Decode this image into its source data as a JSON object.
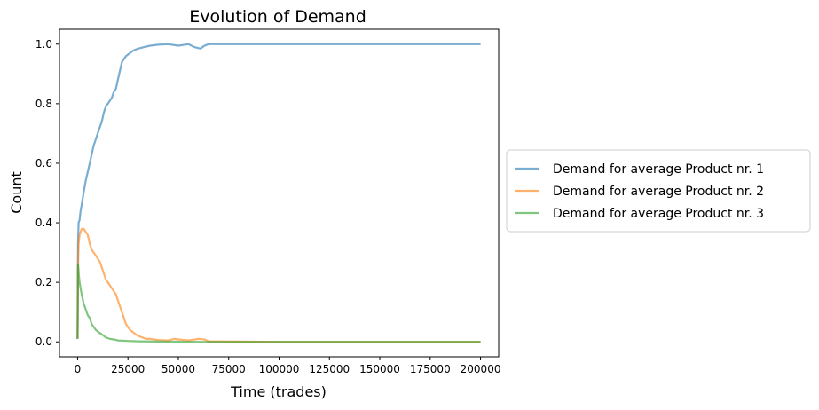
{
  "chart_data": {
    "type": "line",
    "title": "Evolution of Demand",
    "xlabel": "Time (trades)",
    "ylabel": "Count",
    "xlim": [
      -9000,
      209000
    ],
    "ylim": [
      -0.05,
      1.05
    ],
    "xticks": [
      0,
      25000,
      50000,
      75000,
      100000,
      125000,
      150000,
      175000,
      200000
    ],
    "yticks": [
      0.0,
      0.2,
      0.4,
      0.6,
      0.8,
      1.0
    ],
    "xtick_labels": [
      "0",
      "25000",
      "50000",
      "75000",
      "100000",
      "125000",
      "150000",
      "175000",
      "200000"
    ],
    "ytick_labels": [
      "0.0",
      "0.2",
      "0.4",
      "0.6",
      "0.8",
      "1.0"
    ],
    "grid": false,
    "legend_position": "outside-right",
    "series": [
      {
        "name": "Demand for average Product nr. 1",
        "color": "#1f77b4",
        "x": [
          0,
          200,
          500,
          1000,
          1500,
          2000,
          3000,
          4000,
          5000,
          6000,
          7000,
          8000,
          9000,
          10000,
          11000,
          12000,
          13000,
          14000,
          15000,
          16000,
          17000,
          18000,
          19000,
          20000,
          21000,
          22000,
          24000,
          26000,
          28000,
          30000,
          33000,
          36000,
          40000,
          45000,
          50000,
          55000,
          58000,
          61000,
          63000,
          65000,
          70000,
          100000,
          150000,
          200000
        ],
        "y": [
          0.01,
          0.33,
          0.4,
          0.41,
          0.44,
          0.46,
          0.5,
          0.54,
          0.57,
          0.6,
          0.63,
          0.66,
          0.68,
          0.7,
          0.72,
          0.74,
          0.77,
          0.79,
          0.8,
          0.81,
          0.82,
          0.84,
          0.85,
          0.88,
          0.91,
          0.94,
          0.96,
          0.97,
          0.98,
          0.985,
          0.99,
          0.995,
          0.998,
          1.0,
          0.995,
          1.0,
          0.99,
          0.985,
          0.995,
          1.0,
          1.0,
          1.0,
          1.0,
          1.0
        ]
      },
      {
        "name": "Demand for average Product nr. 2",
        "color": "#ff7f0e",
        "x": [
          0,
          200,
          500,
          1000,
          2000,
          3000,
          4000,
          5000,
          6000,
          7000,
          8000,
          9000,
          10000,
          11000,
          12000,
          13000,
          14000,
          15000,
          16000,
          17000,
          18000,
          19000,
          20000,
          21000,
          22000,
          23000,
          24000,
          25000,
          26000,
          27000,
          28000,
          30000,
          32000,
          34000,
          36000,
          38000,
          40000,
          45000,
          48000,
          50000,
          55000,
          60000,
          63000,
          65000,
          100000,
          150000,
          200000
        ],
        "y": [
          0.01,
          0.25,
          0.33,
          0.36,
          0.38,
          0.38,
          0.37,
          0.36,
          0.33,
          0.31,
          0.3,
          0.29,
          0.28,
          0.27,
          0.25,
          0.23,
          0.21,
          0.2,
          0.19,
          0.18,
          0.17,
          0.16,
          0.14,
          0.12,
          0.1,
          0.08,
          0.06,
          0.05,
          0.04,
          0.035,
          0.03,
          0.02,
          0.015,
          0.01,
          0.01,
          0.008,
          0.006,
          0.005,
          0.01,
          0.008,
          0.005,
          0.01,
          0.008,
          0.002,
          0.0,
          0.0,
          0.0
        ]
      },
      {
        "name": "Demand for average Product nr. 3",
        "color": "#2ca02c",
        "x": [
          0,
          200,
          400,
          700,
          1000,
          1500,
          2000,
          3000,
          4000,
          5000,
          6000,
          7000,
          8000,
          9000,
          10000,
          11000,
          12000,
          13000,
          14000,
          16000,
          18000,
          20000,
          25000,
          30000,
          40000,
          60000,
          100000,
          150000,
          200000
        ],
        "y": [
          0.01,
          0.26,
          0.25,
          0.22,
          0.2,
          0.18,
          0.16,
          0.13,
          0.11,
          0.09,
          0.08,
          0.06,
          0.05,
          0.04,
          0.035,
          0.03,
          0.025,
          0.02,
          0.015,
          0.01,
          0.008,
          0.005,
          0.003,
          0.002,
          0.001,
          0.0,
          0.0,
          0.0,
          0.0
        ]
      }
    ]
  }
}
